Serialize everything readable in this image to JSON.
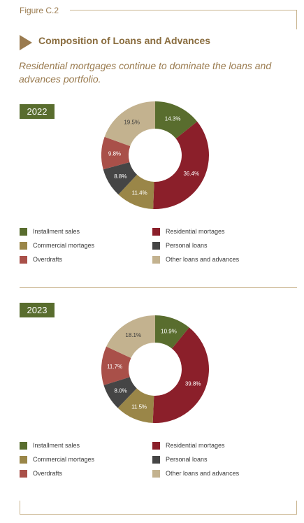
{
  "figure_label": "Figure C.2",
  "title": "Composition of Loans and Advances",
  "subtitle": "Residential mortgages continue to dominate the loans and advances portfolio.",
  "colors": {
    "installment_sales": "#596d2e",
    "residential_mortgages": "#8b1f2a",
    "commercial_mortgages": "#9a8648",
    "personal_loans": "#454545",
    "overdrafts": "#a95049",
    "other_loans": "#c3b28f"
  },
  "legend": [
    {
      "key": "installment_sales",
      "label": "Installment sales"
    },
    {
      "key": "residential_mortgages",
      "label": "Residential mortages"
    },
    {
      "key": "commercial_mortgages",
      "label": "Commercial mortages"
    },
    {
      "key": "personal_loans",
      "label": "Personal loans"
    },
    {
      "key": "overdrafts",
      "label": "Overdrafts"
    },
    {
      "key": "other_loans",
      "label": "Other loans and advances"
    }
  ],
  "chart_data": [
    {
      "type": "pie",
      "title": "2022",
      "slices": [
        {
          "key": "installment_sales",
          "label": "14.3%",
          "value": 14.3
        },
        {
          "key": "residential_mortgages",
          "label": "36.4%",
          "value": 36.4
        },
        {
          "key": "commercial_mortgages",
          "label": "11.4%",
          "value": 11.4
        },
        {
          "key": "personal_loans",
          "label": "8.8%",
          "value": 8.8
        },
        {
          "key": "overdrafts",
          "label": "9.8%",
          "value": 9.8
        },
        {
          "key": "other_loans",
          "label": "19.5%",
          "value": 19.5
        }
      ]
    },
    {
      "type": "pie",
      "title": "2023",
      "slices": [
        {
          "key": "installment_sales",
          "label": "10.9%",
          "value": 10.9
        },
        {
          "key": "residential_mortgages",
          "label": "39.8%",
          "value": 39.8
        },
        {
          "key": "commercial_mortgages",
          "label": "11.5%",
          "value": 11.5
        },
        {
          "key": "personal_loans",
          "label": "8.0%",
          "value": 8.0
        },
        {
          "key": "overdrafts",
          "label": "11.7%",
          "value": 11.7
        },
        {
          "key": "other_loans",
          "label": "18.1%",
          "value": 18.1
        }
      ]
    }
  ]
}
